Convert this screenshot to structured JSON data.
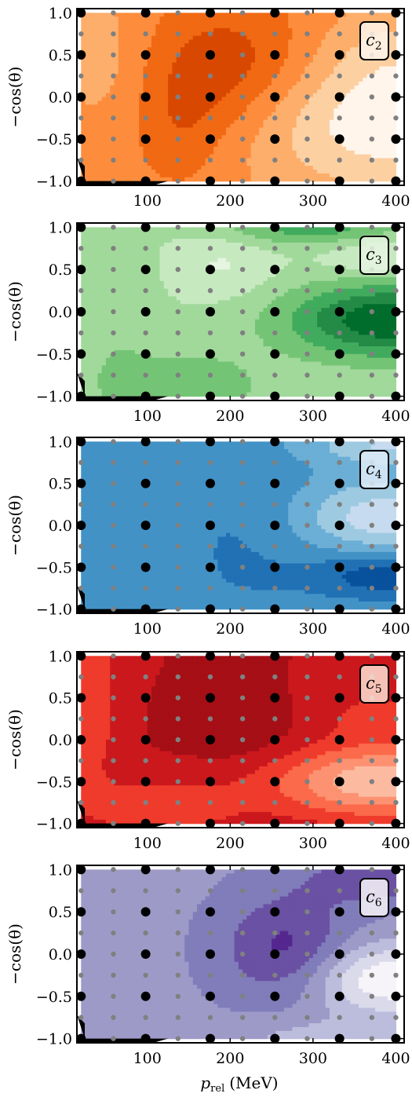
{
  "figure": {
    "ylabel": "−cos(θ)",
    "xlabel_main": "p",
    "xlabel_sub": "rel",
    "xlabel_unit": "(MeV)"
  },
  "chart_data": [
    {
      "type": "heatmap",
      "label_main": "c",
      "label_sub": "2",
      "xlim": [
        15,
        410
      ],
      "ylim": [
        -1.05,
        1.05
      ],
      "xticks": [
        100,
        200,
        300,
        400
      ],
      "yticks": [
        -1.0,
        -0.5,
        0.0,
        0.5,
        1.0
      ],
      "ytick_labels": [
        "−1.0",
        "−0.5",
        "0.0",
        "0.5",
        "1.0"
      ],
      "colors": [
        "#fff5eb",
        "#fdd0a2",
        "#fdae6b",
        "#fd8d3c",
        "#f16913",
        "#d94801",
        "#8c2d04"
      ],
      "base_level": 3,
      "blobs": [
        {
          "x": 200,
          "y": 0.35,
          "sx": 70,
          "sy": 0.55,
          "a": 2.3
        },
        {
          "x": 140,
          "y": -0.4,
          "sx": 40,
          "sy": 0.5,
          "a": 1.2
        },
        {
          "x": 45,
          "y": 0.5,
          "sx": 40,
          "sy": 0.6,
          "a": -1.0
        },
        {
          "x": 390,
          "y": -0.3,
          "sx": 120,
          "sy": 0.6,
          "a": -3.2
        },
        {
          "x": 400,
          "y": 0.6,
          "sx": 60,
          "sy": 0.4,
          "a": -1.0
        }
      ]
    },
    {
      "type": "heatmap",
      "label_main": "c",
      "label_sub": "3",
      "xlim": [
        15,
        410
      ],
      "ylim": [
        -1.05,
        1.05
      ],
      "xticks": [
        100,
        200,
        300,
        400
      ],
      "yticks": [
        -1.0,
        -0.5,
        0.0,
        0.5,
        1.0
      ],
      "ytick_labels": [
        "−1.0",
        "−0.5",
        "0.0",
        "0.5",
        "1.0"
      ],
      "colors": [
        "#e5f5e0",
        "#c7e9c0",
        "#a1d99b",
        "#74c476",
        "#41ab5d",
        "#238b45",
        "#006d2c"
      ],
      "base_level": 1.6,
      "blobs": [
        {
          "x": 190,
          "y": 0.55,
          "sx": 45,
          "sy": 0.28,
          "a": -1.2
        },
        {
          "x": 390,
          "y": 0.65,
          "sx": 55,
          "sy": 0.18,
          "a": -1.4
        },
        {
          "x": 395,
          "y": -0.1,
          "sx": 90,
          "sy": 0.32,
          "a": 4.8
        },
        {
          "x": 60,
          "y": 0.2,
          "sx": 30,
          "sy": 0.7,
          "a": 0.9
        },
        {
          "x": 140,
          "y": -0.9,
          "sx": 70,
          "sy": 0.3,
          "a": 1.8
        },
        {
          "x": 300,
          "y": 1.0,
          "sx": 80,
          "sy": 0.15,
          "a": 2.5
        }
      ]
    },
    {
      "type": "heatmap",
      "label_main": "c",
      "label_sub": "4",
      "xlim": [
        15,
        410
      ],
      "ylim": [
        -1.05,
        1.05
      ],
      "xticks": [
        100,
        200,
        300,
        400
      ],
      "yticks": [
        -1.0,
        -0.5,
        0.0,
        0.5,
        1.0
      ],
      "ytick_labels": [
        "−1.0",
        "−0.5",
        "0.0",
        "0.5",
        "1.0"
      ],
      "colors": [
        "#deebf7",
        "#c6dbef",
        "#9ecae1",
        "#6baed6",
        "#4292c6",
        "#2171b5",
        "#08519c"
      ],
      "base_level": 3.6,
      "blobs": [
        {
          "x": 390,
          "y": 0.1,
          "sx": 75,
          "sy": 0.3,
          "a": -2.8
        },
        {
          "x": 395,
          "y": 0.95,
          "sx": 70,
          "sy": 0.15,
          "a": -2.2
        },
        {
          "x": 210,
          "y": -0.2,
          "sx": 70,
          "sy": 0.9,
          "a": 1.0
        },
        {
          "x": 400,
          "y": -0.6,
          "sx": 70,
          "sy": 0.2,
          "a": 2.8
        }
      ]
    },
    {
      "type": "heatmap",
      "label_main": "c",
      "label_sub": "5",
      "xlim": [
        15,
        410
      ],
      "ylim": [
        -1.05,
        1.05
      ],
      "xticks": [
        100,
        200,
        300,
        400
      ],
      "yticks": [
        -1.0,
        -0.5,
        0.0,
        0.5,
        1.0
      ],
      "ytick_labels": [
        "−1.0",
        "−0.5",
        "0.0",
        "0.5",
        "1.0"
      ],
      "colors": [
        "#fee0d2",
        "#fcbba1",
        "#fc9272",
        "#fb6a4a",
        "#ef3b2c",
        "#cb181d",
        "#a50f15"
      ],
      "base_level": 5.5,
      "blobs": [
        {
          "x": 380,
          "y": -0.5,
          "sx": 90,
          "sy": 0.3,
          "a": -4.8
        },
        {
          "x": 380,
          "y": 0.3,
          "sx": 60,
          "sy": 0.25,
          "a": -1.2
        },
        {
          "x": 30,
          "y": 0.5,
          "sx": 25,
          "sy": 0.8,
          "a": -1.8
        },
        {
          "x": 120,
          "y": -0.8,
          "sx": 70,
          "sy": 0.25,
          "a": -1.6
        },
        {
          "x": 220,
          "y": 0.1,
          "sx": 50,
          "sy": 0.3,
          "a": 0.8
        }
      ]
    },
    {
      "type": "heatmap",
      "label_main": "c",
      "label_sub": "6",
      "xlim": [
        15,
        410
      ],
      "ylim": [
        -1.05,
        1.05
      ],
      "xticks": [
        100,
        200,
        300,
        400
      ],
      "yticks": [
        -1.0,
        -0.5,
        0.0,
        0.5,
        1.0
      ],
      "ytick_labels": [
        "−1.0",
        "−0.5",
        "0.0",
        "0.5",
        "1.0"
      ],
      "colors": [
        "#f7f4f9",
        "#dadaeb",
        "#bcbddc",
        "#9e9ac8",
        "#807dba",
        "#6a51a3",
        "#54278f"
      ],
      "base_level": 3.3,
      "blobs": [
        {
          "x": 270,
          "y": 0.05,
          "sx": 55,
          "sy": 0.45,
          "a": 2.6
        },
        {
          "x": 390,
          "y": -0.3,
          "sx": 70,
          "sy": 0.3,
          "a": -3.8
        },
        {
          "x": 390,
          "y": 0.9,
          "sx": 70,
          "sy": 0.22,
          "a": 2.0
        },
        {
          "x": 300,
          "y": -1.0,
          "sx": 80,
          "sy": 0.18,
          "a": -1.2
        }
      ]
    }
  ],
  "grid": {
    "coarse_x": [
      20,
      98,
      176,
      254,
      332,
      400
    ],
    "coarse_y": [
      -1.0,
      -0.5,
      0.0,
      0.5,
      1.0
    ],
    "fine_x": [
      20,
      59,
      98,
      137,
      176,
      215,
      254,
      293,
      332,
      371,
      400
    ],
    "fine_y": [
      -1.0,
      -0.75,
      -0.5,
      -0.25,
      0.0,
      0.25,
      0.5,
      0.75,
      1.0
    ],
    "coarse_color": "#000000",
    "fine_color": "#808080"
  }
}
